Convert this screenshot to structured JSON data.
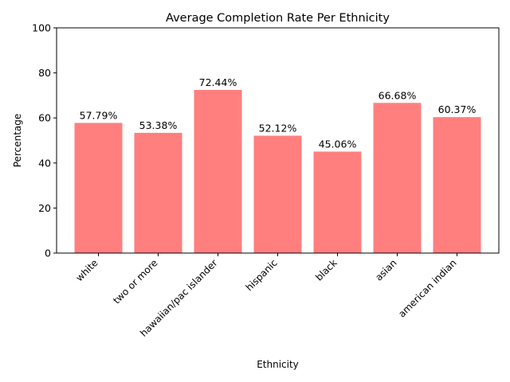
{
  "chart_data": {
    "type": "bar",
    "title": "Average Completion Rate Per Ethnicity",
    "xlabel": "Ethnicity",
    "ylabel": "Percentage",
    "ylim": [
      0,
      100
    ],
    "yticks": [
      0,
      20,
      40,
      60,
      80,
      100
    ],
    "categories": [
      "white",
      "two or more",
      "hawaiian/pac islander",
      "hispanic",
      "black",
      "asian",
      "american indian"
    ],
    "values": [
      57.79,
      53.38,
      72.44,
      52.12,
      45.06,
      66.68,
      60.37
    ],
    "data_labels": [
      "57.79%",
      "53.38%",
      "72.44%",
      "52.12%",
      "45.06%",
      "66.68%",
      "60.37%"
    ],
    "bar_color": "#ff7f7f",
    "grid": false,
    "legend": "none"
  }
}
